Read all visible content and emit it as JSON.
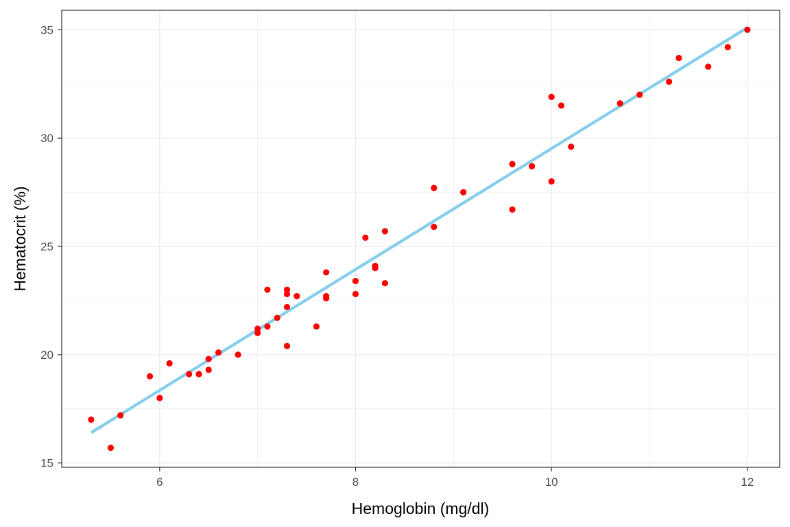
{
  "chart_data": {
    "type": "scatter",
    "title": "",
    "xlabel": "Hemoglobin (mg/dl)",
    "ylabel": "Hematocrit (%)",
    "xlim": [
      5.0,
      12.33
    ],
    "ylim": [
      14.8,
      35.9
    ],
    "x_ticks": [
      6,
      8,
      10,
      12
    ],
    "y_ticks": [
      15,
      20,
      25,
      30,
      35
    ],
    "grid": true,
    "legend": "none",
    "points": [
      {
        "x": 5.3,
        "y": 17.0
      },
      {
        "x": 5.5,
        "y": 15.7
      },
      {
        "x": 5.6,
        "y": 17.2
      },
      {
        "x": 5.9,
        "y": 19.0
      },
      {
        "x": 6.0,
        "y": 18.0
      },
      {
        "x": 6.1,
        "y": 19.6
      },
      {
        "x": 6.3,
        "y": 19.1
      },
      {
        "x": 6.4,
        "y": 19.1
      },
      {
        "x": 6.5,
        "y": 19.3
      },
      {
        "x": 6.5,
        "y": 19.8
      },
      {
        "x": 6.6,
        "y": 20.1
      },
      {
        "x": 6.8,
        "y": 20.0
      },
      {
        "x": 7.0,
        "y": 21.0
      },
      {
        "x": 7.0,
        "y": 21.2
      },
      {
        "x": 7.1,
        "y": 21.3
      },
      {
        "x": 7.1,
        "y": 23.0
      },
      {
        "x": 7.2,
        "y": 21.7
      },
      {
        "x": 7.3,
        "y": 20.4
      },
      {
        "x": 7.3,
        "y": 22.2
      },
      {
        "x": 7.3,
        "y": 22.8
      },
      {
        "x": 7.3,
        "y": 23.0
      },
      {
        "x": 7.4,
        "y": 22.7
      },
      {
        "x": 7.6,
        "y": 21.3
      },
      {
        "x": 7.7,
        "y": 22.6
      },
      {
        "x": 7.7,
        "y": 22.7
      },
      {
        "x": 7.7,
        "y": 23.8
      },
      {
        "x": 8.0,
        "y": 22.8
      },
      {
        "x": 8.0,
        "y": 23.4
      },
      {
        "x": 8.1,
        "y": 25.4
      },
      {
        "x": 8.2,
        "y": 24.0
      },
      {
        "x": 8.2,
        "y": 24.1
      },
      {
        "x": 8.3,
        "y": 23.3
      },
      {
        "x": 8.3,
        "y": 25.7
      },
      {
        "x": 8.8,
        "y": 25.9
      },
      {
        "x": 8.8,
        "y": 27.7
      },
      {
        "x": 9.1,
        "y": 27.5
      },
      {
        "x": 9.6,
        "y": 26.7
      },
      {
        "x": 9.6,
        "y": 28.8
      },
      {
        "x": 9.8,
        "y": 28.7
      },
      {
        "x": 10.0,
        "y": 28.0
      },
      {
        "x": 10.0,
        "y": 31.9
      },
      {
        "x": 10.1,
        "y": 31.5
      },
      {
        "x": 10.2,
        "y": 29.6
      },
      {
        "x": 10.7,
        "y": 31.6
      },
      {
        "x": 10.9,
        "y": 32.0
      },
      {
        "x": 11.2,
        "y": 32.6
      },
      {
        "x": 11.3,
        "y": 33.7
      },
      {
        "x": 11.6,
        "y": 33.3
      },
      {
        "x": 11.8,
        "y": 34.2
      },
      {
        "x": 12.0,
        "y": 35.0
      }
    ],
    "fit_line": {
      "x": [
        5.3,
        12.0
      ],
      "y": [
        16.4,
        35.1
      ]
    },
    "colors": {
      "points": "#ff0000",
      "fit_line": "#87ceeb",
      "grid": "#ebebeb",
      "panel_border": "#333333"
    }
  }
}
